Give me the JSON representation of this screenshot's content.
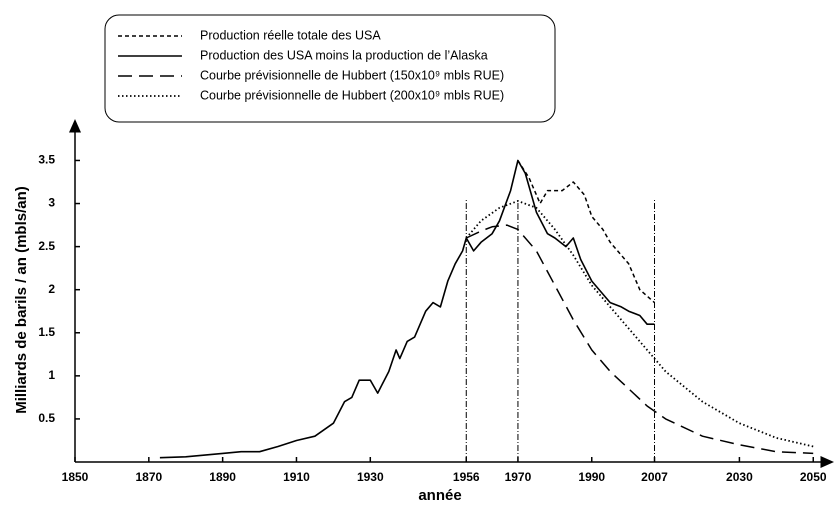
{
  "chart_data": {
    "type": "line",
    "xlabel": "année",
    "ylabel": "Milliards de barils / an (mbls/an)",
    "xlim": [
      1850,
      2054
    ],
    "ylim": [
      0,
      3.9
    ],
    "xticks": [
      1850,
      1870,
      1890,
      1910,
      1930,
      1956,
      1970,
      1990,
      2007,
      2030,
      2050
    ],
    "yticks": [
      0.5,
      1,
      1.5,
      2,
      2.5,
      3,
      3.5
    ],
    "vlines": [
      1956,
      1970,
      2007
    ],
    "legend": "top",
    "series": [
      {
        "name": "Production réelle totale des USA",
        "color": "#000000",
        "dash": "short-dash",
        "x": [
          1970,
          1973,
          1976,
          1978,
          1982,
          1985,
          1988,
          1990,
          1993,
          1995,
          2000,
          2003,
          2007
        ],
        "values": [
          3.5,
          3.3,
          3.0,
          3.15,
          3.15,
          3.25,
          3.1,
          2.85,
          2.7,
          2.55,
          2.3,
          2.0,
          1.85
        ]
      },
      {
        "name": "Production des USA moins la production de l’Alaska",
        "color": "#000000",
        "dash": "solid",
        "x": [
          1873,
          1880,
          1890,
          1895,
          1900,
          1905,
          1910,
          1915,
          1920,
          1923,
          1925,
          1927,
          1930,
          1932,
          1935,
          1937,
          1938,
          1940,
          1942,
          1945,
          1947,
          1949,
          1951,
          1953,
          1955,
          1956,
          1958,
          1960,
          1963,
          1965,
          1968,
          1970,
          1972,
          1975,
          1978,
          1980,
          1983,
          1985,
          1987,
          1990,
          1993,
          1995,
          1998,
          2000,
          2003,
          2005,
          2007
        ],
        "values": [
          0.05,
          0.06,
          0.1,
          0.12,
          0.12,
          0.18,
          0.25,
          0.3,
          0.45,
          0.7,
          0.75,
          0.95,
          0.95,
          0.8,
          1.05,
          1.3,
          1.2,
          1.4,
          1.45,
          1.75,
          1.85,
          1.8,
          2.1,
          2.3,
          2.45,
          2.6,
          2.45,
          2.55,
          2.65,
          2.8,
          3.15,
          3.5,
          3.35,
          2.9,
          2.65,
          2.6,
          2.5,
          2.6,
          2.35,
          2.1,
          1.95,
          1.85,
          1.8,
          1.75,
          1.7,
          1.6,
          1.6
        ]
      },
      {
        "name": "Courbe prévisionnelle de Hubbert (150x10⁹  mbls RUE)",
        "color": "#000000",
        "dash": "long-dash",
        "x": [
          1956,
          1960,
          1963,
          1967,
          1970,
          1975,
          1980,
          1985,
          1990,
          1995,
          2000,
          2005,
          2010,
          2020,
          2030,
          2040,
          2050
        ],
        "values": [
          2.6,
          2.68,
          2.73,
          2.75,
          2.7,
          2.45,
          2.05,
          1.65,
          1.3,
          1.05,
          0.85,
          0.65,
          0.5,
          0.3,
          0.2,
          0.12,
          0.1
        ]
      },
      {
        "name": "Courbe prévisionnelle de Hubbert (200x10⁹  mbls RUE)",
        "color": "#000000",
        "dash": "dotted",
        "x": [
          1956,
          1960,
          1965,
          1970,
          1975,
          1980,
          1985,
          1990,
          1995,
          2000,
          2010,
          2020,
          2030,
          2040,
          2050
        ],
        "values": [
          2.6,
          2.8,
          2.95,
          3.03,
          2.95,
          2.7,
          2.4,
          2.05,
          1.8,
          1.55,
          1.05,
          0.7,
          0.45,
          0.28,
          0.18
        ]
      }
    ]
  }
}
